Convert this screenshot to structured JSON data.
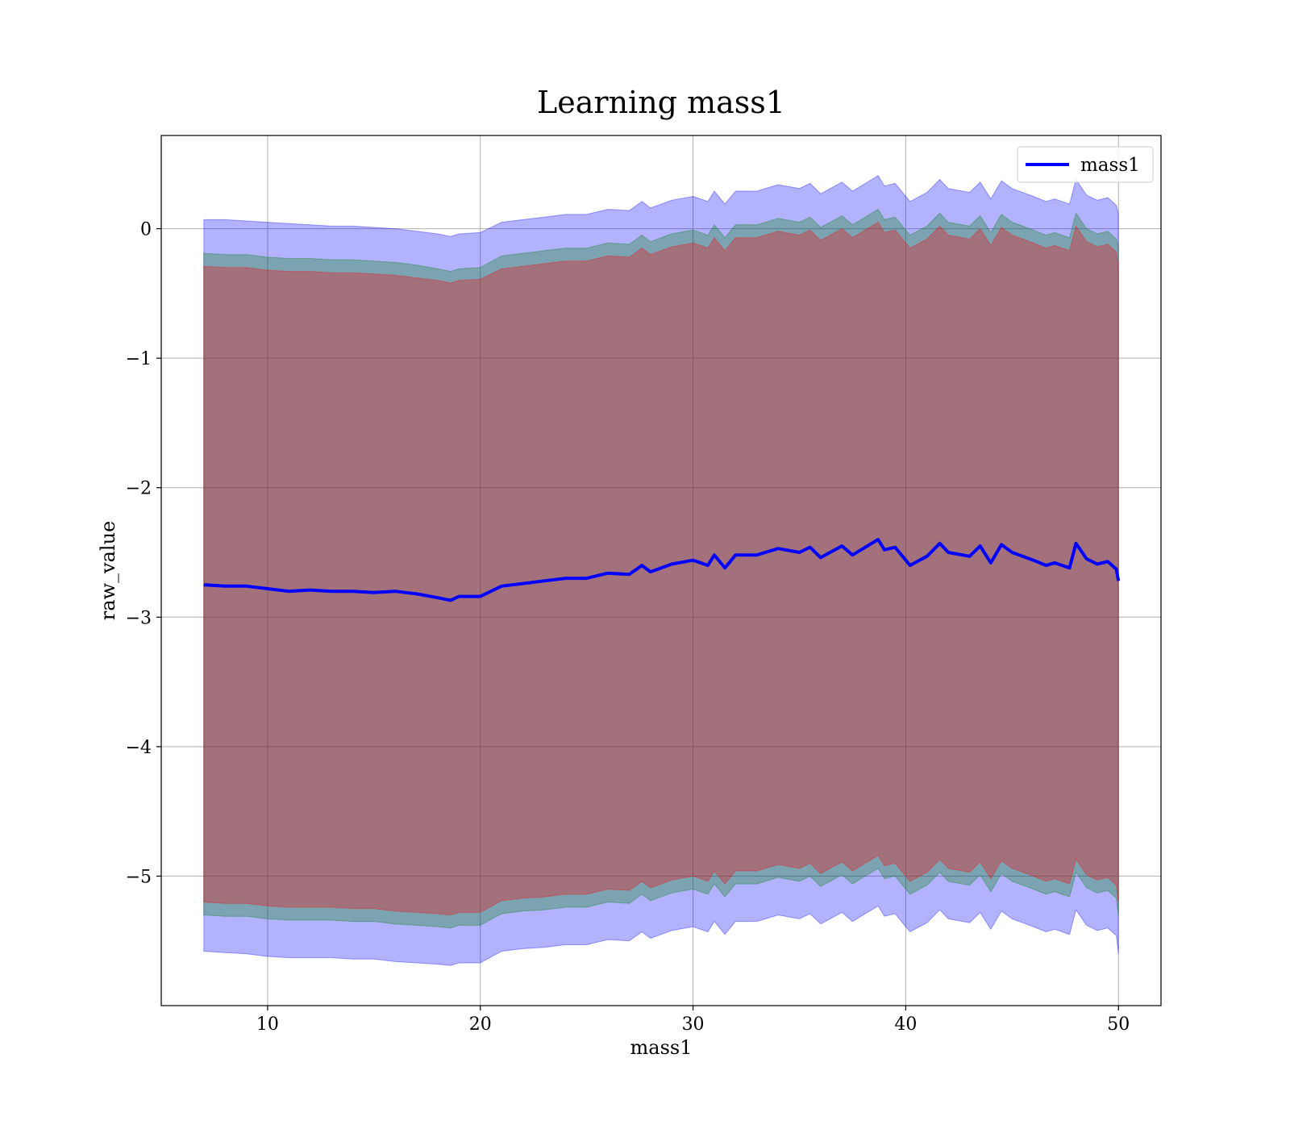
{
  "chart_data": {
    "type": "line",
    "title": "Learning mass1",
    "xlabel": "mass1",
    "ylabel": "raw_value",
    "xlim": [
      5,
      52
    ],
    "ylim": [
      -6.0,
      0.72
    ],
    "xticks": [
      10,
      20,
      30,
      40,
      50
    ],
    "xtick_labels": [
      "10",
      "20",
      "30",
      "40",
      "50"
    ],
    "yticks": [
      0,
      -1,
      -2,
      -3,
      -4,
      -5
    ],
    "ytick_labels": [
      "0",
      "−1",
      "−2",
      "−3",
      "−4",
      "−5"
    ],
    "grid": true,
    "legend": {
      "position": "top-right",
      "entries": [
        "mass1"
      ]
    },
    "x": [
      7,
      8,
      9,
      10,
      11,
      12,
      13,
      14,
      15,
      16,
      17,
      18,
      18.6,
      19,
      20,
      21,
      22,
      23,
      24,
      25,
      26,
      27,
      27.6,
      28,
      29,
      30,
      30.7,
      31,
      31.5,
      32,
      33,
      34,
      35,
      35.5,
      36,
      37,
      37.5,
      38,
      38.7,
      39,
      39.5,
      40,
      40.2,
      41,
      41.6,
      42,
      43,
      43.5,
      44,
      44.5,
      45,
      46,
      46.6,
      47,
      47.7,
      48,
      48.5,
      49,
      49.5,
      49.9,
      50
    ],
    "series": [
      {
        "name": "mass1",
        "color": "#0000ff",
        "y": [
          -2.75,
          -2.76,
          -2.76,
          -2.78,
          -2.8,
          -2.79,
          -2.8,
          -2.8,
          -2.81,
          -2.8,
          -2.82,
          -2.85,
          -2.87,
          -2.84,
          -2.84,
          -2.76,
          -2.74,
          -2.72,
          -2.7,
          -2.7,
          -2.66,
          -2.67,
          -2.6,
          -2.65,
          -2.59,
          -2.56,
          -2.6,
          -2.52,
          -2.62,
          -2.52,
          -2.52,
          -2.47,
          -2.5,
          -2.46,
          -2.54,
          -2.45,
          -2.52,
          -2.47,
          -2.4,
          -2.48,
          -2.46,
          -2.56,
          -2.6,
          -2.53,
          -2.43,
          -2.5,
          -2.53,
          -2.45,
          -2.58,
          -2.44,
          -2.5,
          -2.56,
          -2.6,
          -2.58,
          -2.62,
          -2.43,
          -2.55,
          -2.59,
          -2.57,
          -2.63,
          -2.72
        ]
      }
    ],
    "bands": [
      {
        "color": "#0000ff",
        "opacity": 0.3,
        "lower": [
          -5.58,
          -5.59,
          -5.6,
          -5.62,
          -5.63,
          -5.63,
          -5.63,
          -5.64,
          -5.64,
          -5.66,
          -5.67,
          -5.68,
          -5.69,
          -5.67,
          -5.67,
          -5.58,
          -5.56,
          -5.55,
          -5.53,
          -5.53,
          -5.49,
          -5.5,
          -5.43,
          -5.48,
          -5.42,
          -5.39,
          -5.43,
          -5.35,
          -5.45,
          -5.35,
          -5.35,
          -5.3,
          -5.33,
          -5.29,
          -5.37,
          -5.28,
          -5.35,
          -5.3,
          -5.23,
          -5.31,
          -5.29,
          -5.39,
          -5.43,
          -5.36,
          -5.26,
          -5.33,
          -5.36,
          -5.28,
          -5.41,
          -5.27,
          -5.33,
          -5.39,
          -5.43,
          -5.41,
          -5.45,
          -5.26,
          -5.38,
          -5.42,
          -5.4,
          -5.46,
          -5.6
        ],
        "upper": [
          0.07,
          0.07,
          0.06,
          0.05,
          0.04,
          0.03,
          0.02,
          0.02,
          0.01,
          0.0,
          -0.02,
          -0.04,
          -0.06,
          -0.04,
          -0.03,
          0.05,
          0.07,
          0.09,
          0.11,
          0.11,
          0.15,
          0.14,
          0.21,
          0.16,
          0.22,
          0.25,
          0.21,
          0.29,
          0.19,
          0.29,
          0.29,
          0.34,
          0.31,
          0.35,
          0.27,
          0.36,
          0.29,
          0.34,
          0.41,
          0.33,
          0.35,
          0.25,
          0.21,
          0.28,
          0.38,
          0.31,
          0.28,
          0.36,
          0.23,
          0.37,
          0.31,
          0.25,
          0.21,
          0.23,
          0.19,
          0.38,
          0.26,
          0.22,
          0.24,
          0.18,
          0.12
        ]
      },
      {
        "color": "#008000",
        "opacity": 0.3,
        "lower": [
          -5.3,
          -5.31,
          -5.31,
          -5.33,
          -5.34,
          -5.34,
          -5.34,
          -5.35,
          -5.35,
          -5.37,
          -5.38,
          -5.39,
          -5.4,
          -5.38,
          -5.38,
          -5.29,
          -5.27,
          -5.26,
          -5.24,
          -5.24,
          -5.2,
          -5.21,
          -5.14,
          -5.19,
          -5.13,
          -5.1,
          -5.14,
          -5.06,
          -5.16,
          -5.06,
          -5.06,
          -5.01,
          -5.04,
          -5.0,
          -5.08,
          -4.99,
          -5.06,
          -5.01,
          -4.94,
          -5.02,
          -5.0,
          -5.1,
          -5.14,
          -5.07,
          -4.97,
          -5.04,
          -5.07,
          -4.99,
          -5.12,
          -4.98,
          -5.04,
          -5.1,
          -5.14,
          -5.12,
          -5.16,
          -4.97,
          -5.09,
          -5.13,
          -5.11,
          -5.17,
          -5.3
        ],
        "upper": [
          -0.19,
          -0.2,
          -0.2,
          -0.22,
          -0.23,
          -0.23,
          -0.24,
          -0.24,
          -0.25,
          -0.26,
          -0.28,
          -0.31,
          -0.33,
          -0.31,
          -0.3,
          -0.21,
          -0.19,
          -0.17,
          -0.15,
          -0.15,
          -0.11,
          -0.12,
          -0.05,
          -0.1,
          -0.04,
          -0.01,
          -0.05,
          0.03,
          -0.07,
          0.03,
          0.03,
          0.08,
          0.05,
          0.09,
          0.01,
          0.1,
          0.03,
          0.08,
          0.15,
          0.07,
          0.09,
          -0.01,
          -0.05,
          0.02,
          0.12,
          0.05,
          0.02,
          0.1,
          -0.03,
          0.11,
          0.05,
          -0.01,
          -0.05,
          -0.03,
          -0.07,
          0.12,
          0.0,
          -0.04,
          -0.02,
          -0.08,
          -0.14
        ]
      },
      {
        "color": "#ff0000",
        "opacity": 0.3,
        "lower": [
          -5.2,
          -5.21,
          -5.21,
          -5.23,
          -5.24,
          -5.24,
          -5.24,
          -5.25,
          -5.25,
          -5.27,
          -5.28,
          -5.29,
          -5.3,
          -5.28,
          -5.28,
          -5.19,
          -5.17,
          -5.16,
          -5.14,
          -5.14,
          -5.1,
          -5.11,
          -5.04,
          -5.09,
          -5.03,
          -5.0,
          -5.04,
          -4.96,
          -5.06,
          -4.96,
          -4.96,
          -4.91,
          -4.94,
          -4.9,
          -4.98,
          -4.89,
          -4.96,
          -4.91,
          -4.84,
          -4.92,
          -4.9,
          -5.0,
          -5.04,
          -4.97,
          -4.87,
          -4.94,
          -4.97,
          -4.89,
          -5.02,
          -4.88,
          -4.94,
          -5.0,
          -5.04,
          -5.02,
          -5.06,
          -4.87,
          -4.99,
          -5.03,
          -5.01,
          -5.07,
          -5.2
        ],
        "upper": [
          -0.29,
          -0.3,
          -0.3,
          -0.32,
          -0.33,
          -0.33,
          -0.34,
          -0.34,
          -0.35,
          -0.36,
          -0.38,
          -0.4,
          -0.42,
          -0.4,
          -0.39,
          -0.31,
          -0.29,
          -0.27,
          -0.25,
          -0.25,
          -0.21,
          -0.22,
          -0.15,
          -0.2,
          -0.14,
          -0.11,
          -0.15,
          -0.07,
          -0.17,
          -0.07,
          -0.07,
          -0.02,
          -0.05,
          -0.01,
          -0.09,
          0.0,
          -0.07,
          -0.02,
          0.05,
          -0.03,
          -0.01,
          -0.11,
          -0.15,
          -0.08,
          0.02,
          -0.05,
          -0.08,
          0.0,
          -0.13,
          0.01,
          -0.05,
          -0.11,
          -0.15,
          -0.13,
          -0.17,
          0.02,
          -0.1,
          -0.14,
          -0.12,
          -0.18,
          -0.3
        ]
      }
    ]
  }
}
